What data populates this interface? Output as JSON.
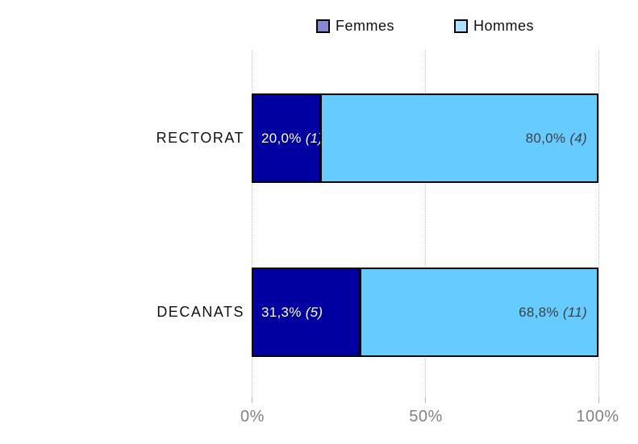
{
  "chart_data": {
    "type": "bar",
    "orientation": "horizontal",
    "stacked": true,
    "categories": [
      "RECTORAT",
      "DECANATS"
    ],
    "series": [
      {
        "name": "Femmes",
        "bar_color": "#0000A0",
        "legend_swatch_color": "#8787D2",
        "values_pct": [
          20.0,
          31.3
        ],
        "counts": [
          1,
          5
        ],
        "labels": [
          "20,0% (1)",
          "31,3% (5)"
        ]
      },
      {
        "name": "Hommes",
        "bar_color": "#66CCFF",
        "legend_swatch_color": "#AAE2FF",
        "values_pct": [
          80.0,
          68.8
        ],
        "counts": [
          4,
          11
        ],
        "labels": [
          "80,0% (4)",
          "68,8% (11)"
        ]
      }
    ],
    "xlabel": "",
    "ylabel": "",
    "title": "",
    "x_ticks": [
      "0%",
      "50%",
      "100%"
    ],
    "xlim": [
      0,
      100
    ],
    "grid": true,
    "legend_position": "top-center"
  },
  "legend": {
    "items": [
      {
        "label": "Femmes",
        "color": "#8787D2"
      },
      {
        "label": "Hommes",
        "color": "#AAE2FF"
      }
    ]
  },
  "rows": [
    {
      "category": "RECTORAT",
      "femmes_pct_label": "20,0%",
      "femmes_count_label": "(1)",
      "femmes_value": 20.0,
      "hommes_pct_label": "80,0%",
      "hommes_count_label": "(4)",
      "hommes_value": 80.0
    },
    {
      "category": "DECANATS",
      "femmes_pct_label": "31,3%",
      "femmes_count_label": "(5)",
      "femmes_value": 31.3,
      "hommes_pct_label": "68,8%",
      "hommes_count_label": "(11)",
      "hommes_value": 68.7
    }
  ],
  "axis": {
    "tick_0": "0%",
    "tick_50": "50%",
    "tick_100": "100%"
  },
  "colors": {
    "femmes_bar": "#0000A0",
    "hommes_bar": "#66CCFF",
    "femmes_swatch": "#8787D2",
    "hommes_swatch": "#AAE2FF",
    "gridline": "#C3C3C3",
    "axis_text": "#828282",
    "hommes_label_text": "#404040",
    "femmes_label_text": "#FFFFFF"
  }
}
